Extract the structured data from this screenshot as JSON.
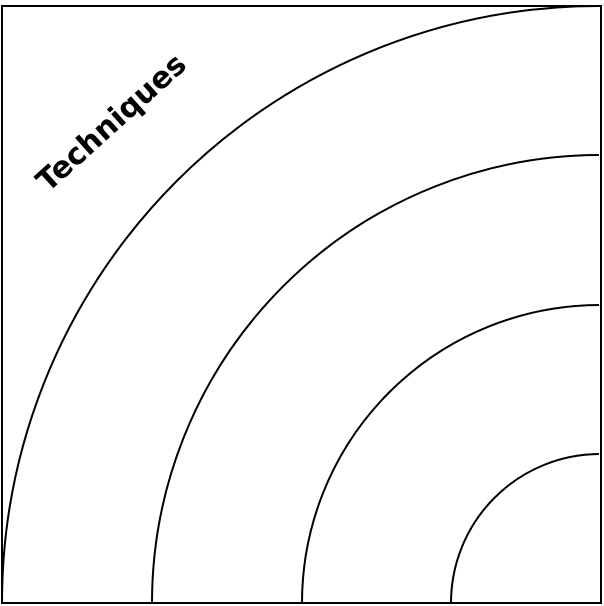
{
  "diagram": {
    "quadrant_label": "Techniques",
    "ring_count": 4,
    "colors": {
      "background": "#ffffff",
      "stroke": "#000000",
      "text": "#000000"
    }
  }
}
